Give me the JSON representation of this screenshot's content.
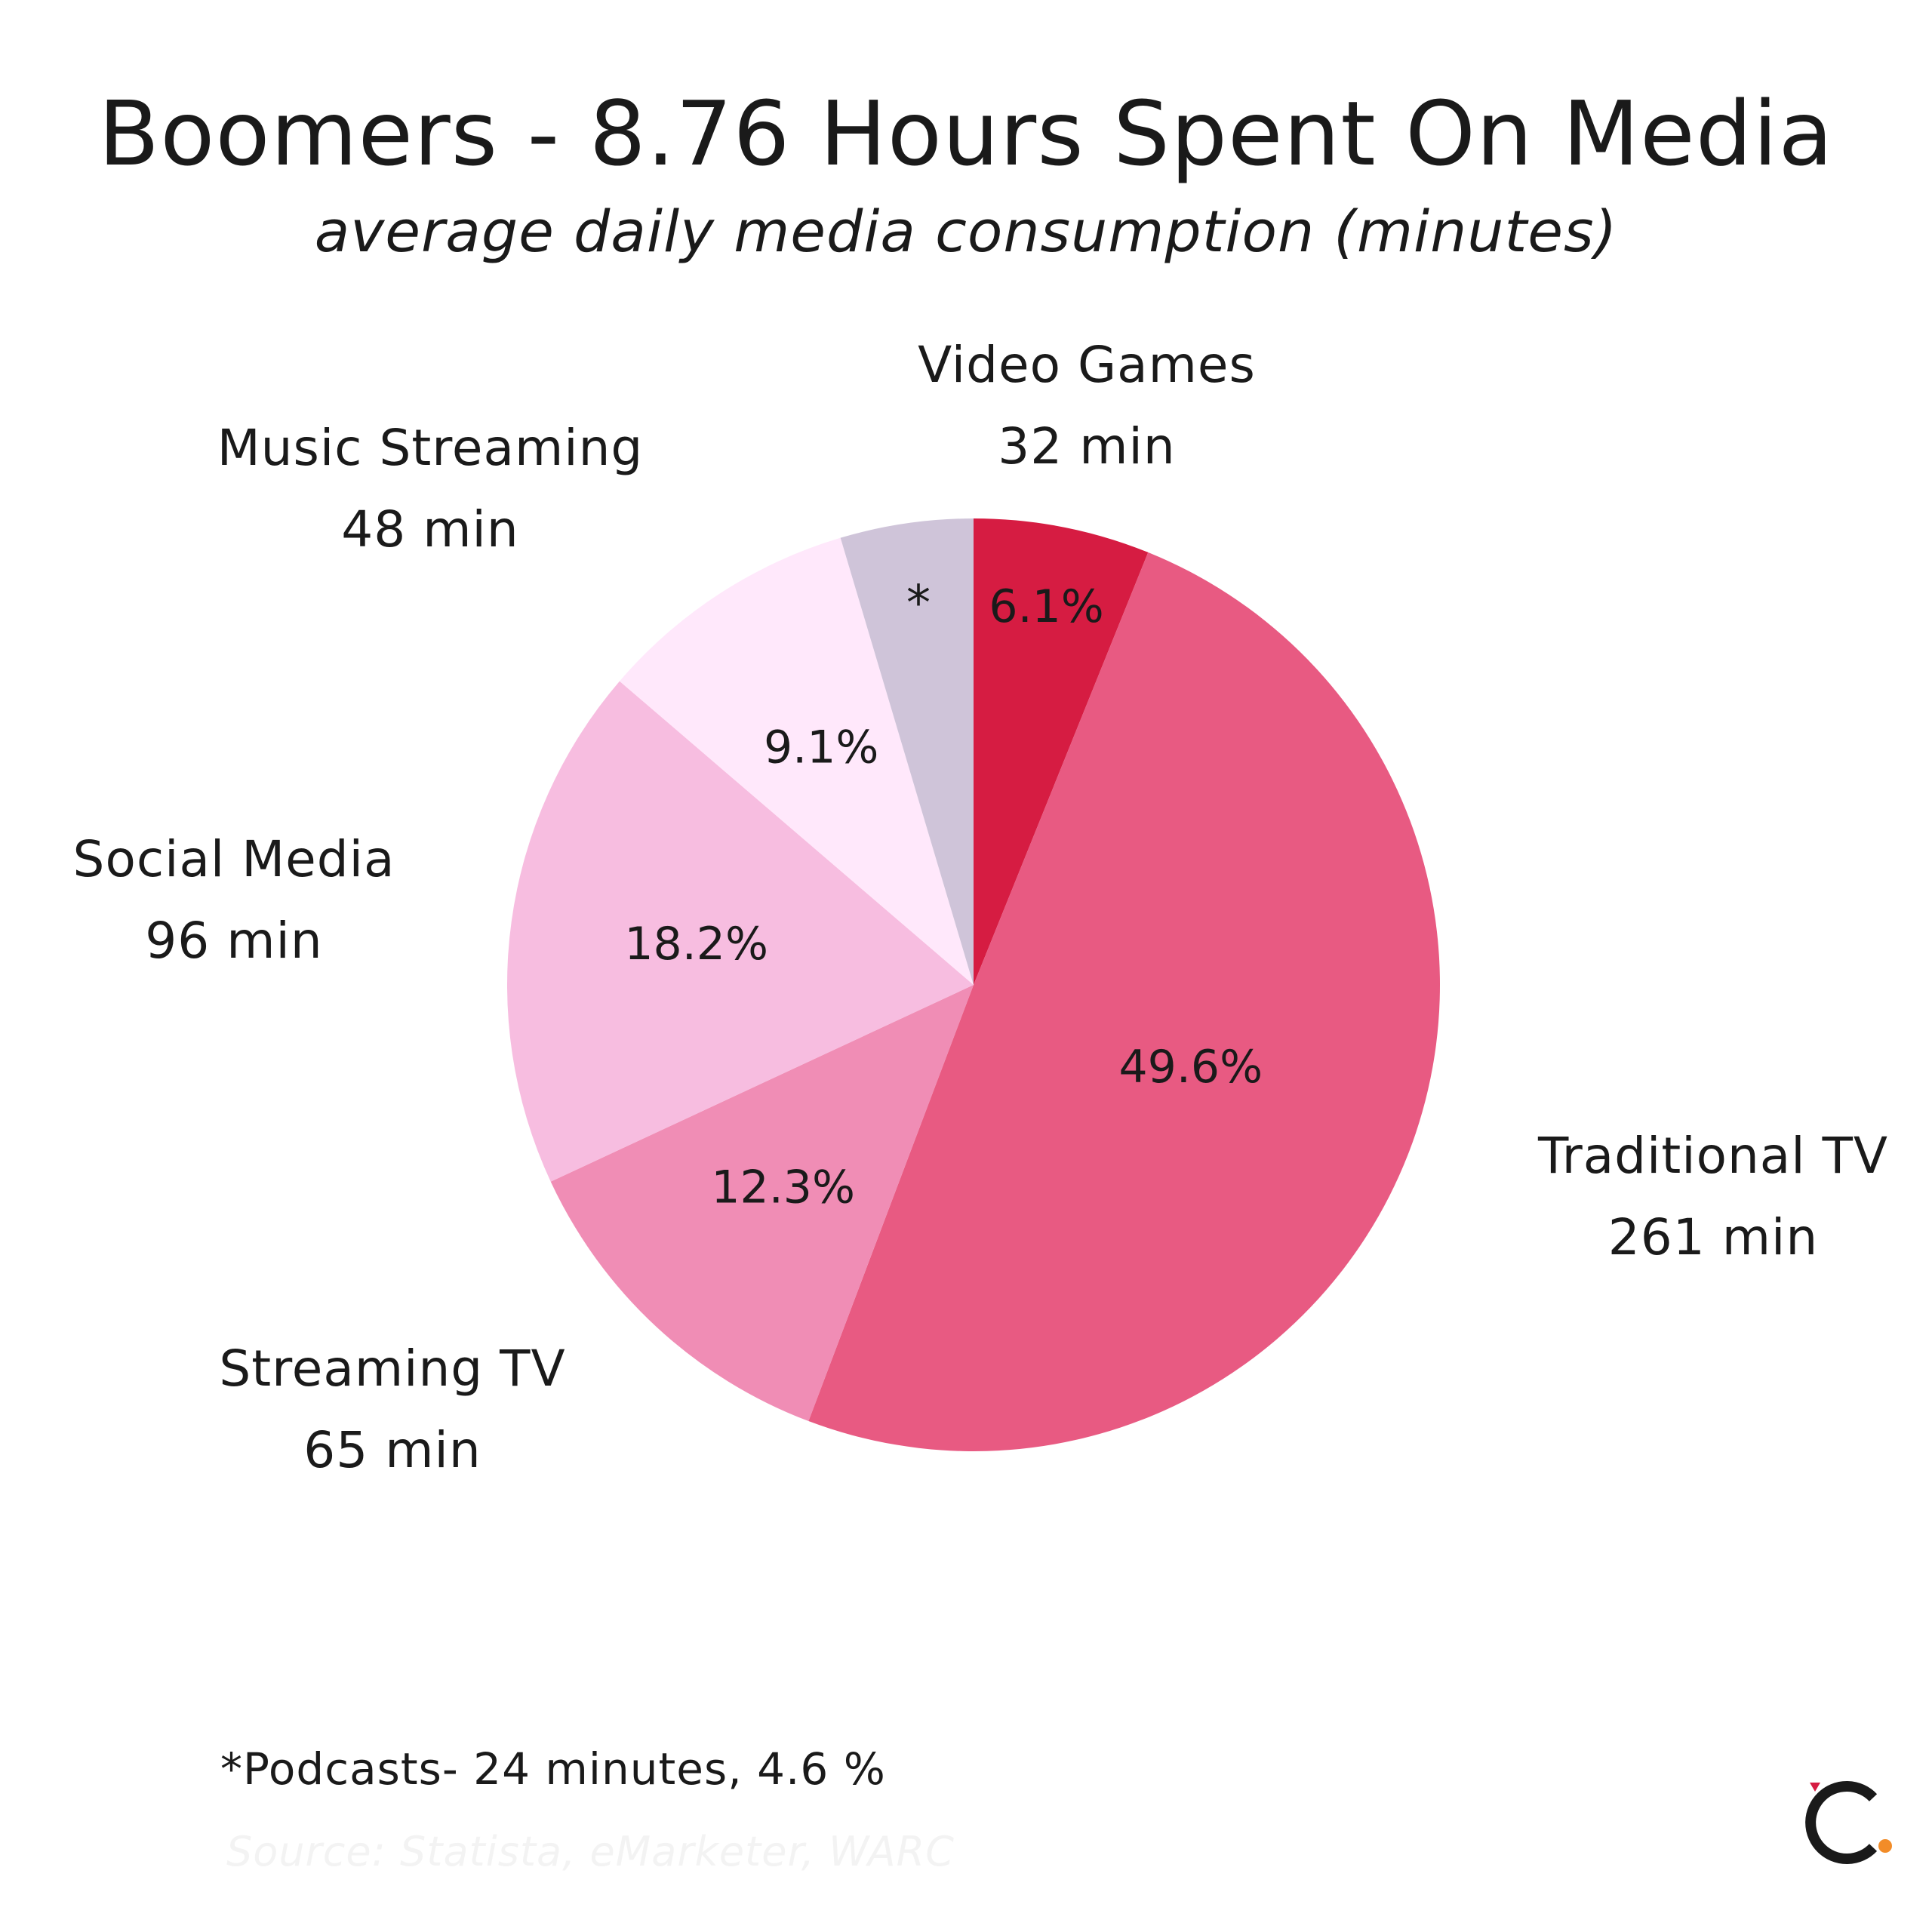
{
  "header": {
    "title": "Boomers - 8.76 Hours Spent On Media",
    "subtitle": "average daily media consumption (minutes)"
  },
  "chart_data": {
    "type": "pie",
    "title": "Boomers - 8.76 Hours Spent On Media",
    "subtitle": "average daily media consumption (minutes)",
    "unit": "min",
    "slices": [
      {
        "name": "Video Games",
        "minutes": 32,
        "minutes_label": "32 min",
        "percent": 6.1,
        "percent_label": "6.1%",
        "color": "#d61c42"
      },
      {
        "name": "Traditional TV",
        "minutes": 261,
        "minutes_label": "261 min",
        "percent": 49.6,
        "percent_label": "49.6%",
        "color": "#e85a82"
      },
      {
        "name": "Streaming TV",
        "minutes": 65,
        "minutes_label": "65 min",
        "percent": 12.3,
        "percent_label": "12.3%",
        "color": "#f08db5"
      },
      {
        "name": "Social Media",
        "minutes": 96,
        "minutes_label": "96 min",
        "percent": 18.2,
        "percent_label": "18.2%",
        "color": "#f7bde0"
      },
      {
        "name": "Music Streaming",
        "minutes": 48,
        "minutes_label": "48 min",
        "percent": 9.1,
        "percent_label": "9.1%",
        "color": "#ffe8fb"
      },
      {
        "name": "Podcasts",
        "minutes": 24,
        "percent": 4.6,
        "percent_label": "*",
        "color": "#cfc4d9"
      }
    ]
  },
  "footnote": "*Podcasts- 24 minutes, 4.6 %",
  "source": "Source: Statista, eMarketer, WARC",
  "logo": {
    "icon": "brand-c-logo-icon",
    "colors": [
      "#1a1a1a",
      "#d61c42",
      "#f28c28"
    ]
  }
}
